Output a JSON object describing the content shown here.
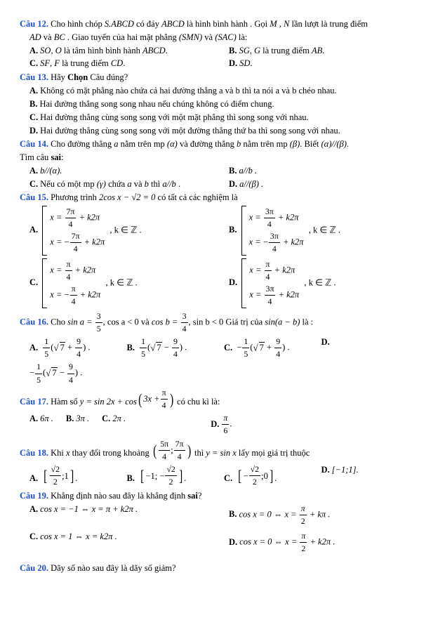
{
  "q12": {
    "label": "Câu 12.",
    "text1": "Cho hình chóp ",
    "m1": "S.ABCD",
    "text2": " có đáy ",
    "m2": "ABCD",
    "text3": " là hình bình hành . Gọi ",
    "m3": "M",
    "text4": " , ",
    "m4": "N",
    "text5": " lần lượt là trung điểm",
    "line2a": "AD",
    "line2b": " và ",
    "line2c": "BC",
    "line2d": " . Giao tuyến của hai mặt phẳng ",
    "line2e": "(SMN)",
    "line2f": " và ",
    "line2g": "(SAC)",
    "line2h": " là:",
    "A1": "SO",
    "A2": "O",
    "A3": " là tâm hình bình hành ",
    "A4": "ABCD",
    "B1": "SG",
    "B2": "G",
    "B3": " là trung điểm ",
    "B4": "AB",
    "C1": "SF",
    "C2": "F",
    "C3": " là trung điểm ",
    "C4": "CD",
    "D1": "SD"
  },
  "q13": {
    "label": "Câu 13.",
    "text": "Hãy ",
    "bold": "Chọn",
    "text2": " Câu đúng?",
    "A": "Không có mặt phẳng nào chứa cả hai đường thẳng  a  và  b  thì ta nói  a  và  b  chéo nhau.",
    "B": "Hai đường thẳng song song nhau nếu chúng không có điểm chung.",
    "C": "Hai đường thẳng cùng song song với một mặt phẳng thì song song với nhau.",
    "D": "Hai đường thẳng cùng song song với một đường thẳng thứ ba thì song song với nhau."
  },
  "q14": {
    "label": "Câu 14.",
    "t1": "Cho đường thẳng ",
    "a": "a",
    "t2": " nằm trên mp ",
    "alpha": "(α)",
    "t3": " và đường thẳng ",
    "b": "b",
    "t4": " nằm trên mp ",
    "beta": "(β)",
    "t5": ". Biết ",
    "cond": "(α)//(β)",
    "t6": ".",
    "findsai": "Tìm câu ",
    "sai": "sai",
    "col": ":",
    "A": "b//(α).",
    "B": "a//b .",
    "C1": "Nếu có một mp ",
    "Cg": "(γ)",
    "C2": " chứa ",
    "Ca": "a",
    "C3": " và ",
    "Cb": "b",
    "C4": " thì ",
    "Cc": "a//b",
    "C5": " .",
    "D": "a//(β) ."
  },
  "q15": {
    "label": "Câu 15.",
    "t1": "Phương trình ",
    "eq": "2cos x − √2 = 0",
    "t2": " có tất cả các nghiệm là",
    "AB_tail": " , k ∈ ℤ .",
    "A1n": "7π",
    "A1d": "4",
    "A1r": " + k2π",
    "A2p": "−",
    "A2n": "7π",
    "A2d": "4",
    "A2r": " + k2π",
    "B1n": "3π",
    "B1d": "4",
    "B1r": " + k2π",
    "B2p": "−",
    "B2n": "3π",
    "B2d": "4",
    "B2r": " + k2π",
    "C1n": "π",
    "C1d": "4",
    "C1r": " + k2π",
    "C2p": "−",
    "C2n": "π",
    "C2d": "4",
    "C2r": " + k2π",
    "D1n": "π",
    "D1d": "4",
    "D1r": " + k2π",
    "D2n": "3π",
    "D2d": "4",
    "D2r": " + k2π"
  },
  "q16": {
    "label": "Câu 16.",
    "t1": "Cho ",
    "sina": "sin a = ",
    "f1n": "3",
    "f1d": "5",
    "mid1": ", cos a < 0  và ",
    "cosb": "cos b = ",
    "f2n": "3",
    "f2d": "4",
    "mid2": ", sin b < 0  Giá trị của ",
    "expr": "sin(a − b)",
    "t2": " là :",
    "outer_n": "1",
    "outer_d": "5",
    "inner_root": "7",
    "inner_plus": "+",
    "inner_minus": "−",
    "inner_n": "9",
    "inner_d": "4",
    "sign_minus": "−"
  },
  "q17": {
    "label": "Câu 17.",
    "t1": "Hàm số ",
    "y": "y = sin 2x + cos",
    "par_l": "(",
    "par_r": ")",
    "inner": "3x + ",
    "fn": "π",
    "fd": "4",
    "t2": " có chu kì là:",
    "A": "6π .",
    "B": "3π .",
    "C": "2π .",
    "Dn": "π",
    "Dd": "6",
    "Ddot": "."
  },
  "q18": {
    "label": "Câu 18.",
    "t1": "Khi ",
    "x": "x",
    "t2": " thay đổi trong khoảng ",
    "ln": "5π",
    "ld": "4",
    "rn": "7π",
    "rd": "4",
    "t3": " thì ",
    "eq": "y = sin x",
    "t4": " lấy mọi giá trị thuộc",
    "A_ln": "√2",
    "A_ld": "2",
    "A_r": ";1",
    "B_l": "−1; −",
    "B_rn": "√2",
    "B_rd": "2",
    "C_l": "−",
    "C_ln": "√2",
    "C_ld": "2",
    "C_r": ";0",
    "D": "[−1;1]."
  },
  "q19": {
    "label": "Câu 19.",
    "t": "Khẳng định nào sau đây là khẳng định ",
    "sai": "sai",
    "q": "?",
    "A": "cos x = −1 ⇔ x = π + k2π .",
    "B1": "cos x = 0 ⇔ x = ",
    "Bn": "π",
    "Bd": "2",
    "B2": " + kπ .",
    "C": "cos x = 1 ⇔ x = k2π .",
    "D1": "cos x = 0 ⇔ x = ",
    "Dn": "π",
    "Dd": "2",
    "D2": " + k2π ."
  },
  "q20": {
    "label": "Câu 20.",
    "t": "Dãy số nào sau đây là dãy số giảm?"
  },
  "labels": {
    "A": "A.",
    "B": "B.",
    "C": "C.",
    "D": "D."
  },
  "math": {
    "xeq": "x = "
  }
}
